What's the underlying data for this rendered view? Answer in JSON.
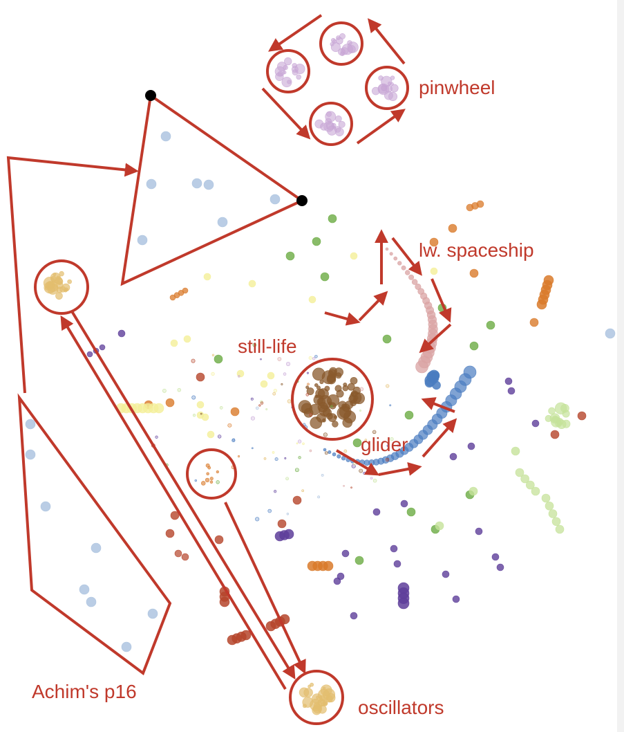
{
  "colors": {
    "annotation": "#c0392b",
    "vertex": "#000000",
    "category_palette": [
      "#a9c1de",
      "#e3be6e",
      "#c8a6d6",
      "#8a5a2c",
      "#d9a3a3",
      "#4a7cc0",
      "#6bab43",
      "#d97a2a",
      "#b5452b",
      "#f4ef98",
      "#c5e29a",
      "#5e3e9a"
    ]
  },
  "labels": {
    "pinwheel": "pinwheel",
    "lw_spaceship": "lw. spaceship",
    "still_life": "still-life",
    "glider": "glider",
    "achims_p16": "Achim's p16",
    "oscillators": "oscillators"
  }
}
